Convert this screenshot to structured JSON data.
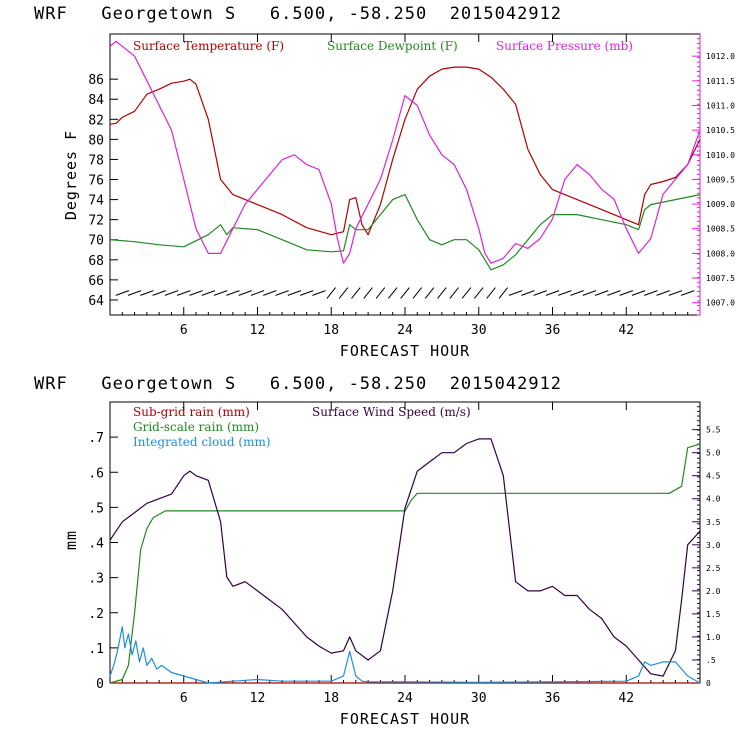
{
  "chart_data": [
    {
      "type": "line",
      "title": "WRF   Georgetown S   6.500, -58.250  2015042912",
      "xlabel": "FORECAST HOUR",
      "ylabel": "Degrees F",
      "xlim": [
        0,
        48
      ],
      "ylim": [
        62.5,
        90.5
      ],
      "x_ticks": [
        "6",
        "12",
        "18",
        "24",
        "30",
        "36",
        "42"
      ],
      "y_ticks": [
        "64",
        "66",
        "68",
        "70",
        "72",
        "74",
        "76",
        "78",
        "80",
        "82",
        "84",
        "86"
      ],
      "y2_label": "",
      "y2_ticks": [
        "1007.0",
        "1007.5",
        "1008.0",
        "1008.5",
        "1009.0",
        "1009.5",
        "1010.0",
        "1010.5",
        "1011.0",
        "1011.5",
        "1012.0"
      ],
      "y2lim": [
        1006.75,
        1012.45
      ],
      "grid": false,
      "legend_position": "top",
      "series": [
        {
          "name": "Surface Temperature (F)",
          "color": "#b00000",
          "axis": "left",
          "x": [
            0,
            0.5,
            1,
            2,
            3,
            4,
            5,
            6,
            6.5,
            7,
            8,
            9,
            10,
            12,
            14,
            16,
            18,
            19,
            19.5,
            20,
            20.5,
            21,
            22,
            23,
            24,
            25,
            26,
            27,
            28,
            29,
            30,
            31,
            32,
            33,
            34,
            35,
            36,
            37,
            38,
            40,
            42,
            43,
            43.5,
            44,
            45,
            46,
            47,
            48
          ],
          "values": [
            81.5,
            81.6,
            82.2,
            82.8,
            84.5,
            85.0,
            85.6,
            85.8,
            86.0,
            85.5,
            82.0,
            76.0,
            74.5,
            73.5,
            72.5,
            71.2,
            70.5,
            70.8,
            74.0,
            74.2,
            71.5,
            70.5,
            73.5,
            78.0,
            82.0,
            85.0,
            86.3,
            87.0,
            87.2,
            87.2,
            87.0,
            86.2,
            85.0,
            83.5,
            79.0,
            76.5,
            75.0,
            74.5,
            74.0,
            73.0,
            72.0,
            71.5,
            74.5,
            75.5,
            75.8,
            76.2,
            77.5,
            80.0
          ]
        },
        {
          "name": "Surface Dewpoint (F)",
          "color": "#228822",
          "axis": "left",
          "x": [
            0,
            2,
            4,
            6,
            8,
            9,
            9.5,
            10,
            12,
            14,
            16,
            18,
            19,
            19.5,
            20,
            21,
            22,
            23,
            24,
            25,
            26,
            27,
            28,
            29,
            30,
            31,
            32,
            33,
            34,
            35,
            36,
            38,
            40,
            42,
            43,
            43.5,
            44,
            46,
            48
          ],
          "values": [
            70.0,
            69.8,
            69.5,
            69.3,
            70.5,
            71.5,
            70.5,
            71.2,
            71.0,
            70.0,
            69.0,
            68.8,
            68.9,
            71.5,
            71.0,
            71.0,
            72.5,
            74.0,
            74.5,
            72.0,
            70.0,
            69.5,
            70.0,
            70.0,
            69.0,
            67.0,
            67.5,
            68.5,
            70.0,
            71.5,
            72.5,
            72.5,
            72.0,
            71.5,
            71.0,
            73.0,
            73.5,
            74.0,
            74.5
          ]
        },
        {
          "name": "Surface Pressure (mb)",
          "color": "#dd22dd",
          "axis": "right",
          "x": [
            0,
            0.5,
            1,
            2,
            3,
            4,
            5,
            6,
            7,
            8,
            9,
            10,
            11,
            12,
            13,
            14,
            15,
            16,
            17,
            18,
            18.5,
            19,
            19.5,
            20,
            21,
            22,
            23,
            24,
            25,
            26,
            27,
            28,
            29,
            30,
            30.5,
            31,
            32,
            33,
            34,
            35,
            36,
            37,
            38,
            39,
            40,
            41,
            42,
            43,
            44,
            45,
            46,
            47,
            48
          ],
          "values": [
            1012.2,
            1012.3,
            1012.2,
            1012.0,
            1011.5,
            1011.0,
            1010.5,
            1009.5,
            1008.5,
            1008.0,
            1008.0,
            1008.5,
            1009.0,
            1009.3,
            1009.6,
            1009.9,
            1010.0,
            1009.8,
            1009.7,
            1009.0,
            1008.3,
            1007.8,
            1008.0,
            1008.5,
            1009.0,
            1009.5,
            1010.3,
            1011.2,
            1011.0,
            1010.4,
            1010.0,
            1009.8,
            1009.3,
            1008.5,
            1008.0,
            1007.8,
            1007.9,
            1008.2,
            1008.1,
            1008.3,
            1008.7,
            1009.5,
            1009.8,
            1009.6,
            1009.3,
            1009.1,
            1008.5,
            1008.0,
            1008.3,
            1009.2,
            1009.5,
            1009.8,
            1010.5
          ]
        }
      ],
      "wind_barbs": "wind barbs along the bottom"
    },
    {
      "type": "line",
      "title": "WRF   Georgetown S   6.500, -58.250  2015042912",
      "xlabel": "FORECAST HOUR",
      "ylabel": "mm",
      "xlim": [
        0,
        48
      ],
      "ylim": [
        0,
        0.8
      ],
      "x_ticks": [
        "6",
        "12",
        "18",
        "24",
        "30",
        "36",
        "42"
      ],
      "y_ticks": [
        "0",
        ".1",
        ".2",
        ".3",
        ".4",
        ".5",
        ".6",
        ".7"
      ],
      "y2_label": "",
      "y2_ticks": [
        "0",
        ".5",
        "1.0",
        "1.5",
        "2.0",
        "2.5",
        "3.0",
        "3.5",
        "4.0",
        "4.5",
        "5.0",
        "5.5"
      ],
      "y2lim": [
        0,
        6.1
      ],
      "grid": false,
      "legend_position": "top-left",
      "series": [
        {
          "name": "Sub-grid rain (mm)",
          "color": "#b00000",
          "axis": "left",
          "x": [
            0,
            48
          ],
          "values": [
            0,
            0
          ]
        },
        {
          "name": "Grid-scale rain (mm)",
          "color": "#228822",
          "axis": "left",
          "x": [
            0,
            1,
            1.5,
            2,
            2.5,
            3,
            3.5,
            4,
            4.5,
            5,
            5.5,
            24,
            24.5,
            25,
            45.5,
            46,
            46.5,
            47,
            48
          ],
          "values": [
            0,
            0.01,
            0.05,
            0.2,
            0.38,
            0.44,
            0.47,
            0.48,
            0.49,
            0.49,
            0.49,
            0.49,
            0.52,
            0.54,
            0.54,
            0.55,
            0.56,
            0.67,
            0.68
          ]
        },
        {
          "name": "Surface Wind Speed (m/s)",
          "color": "#330044",
          "axis": "right",
          "x": [
            0,
            1,
            2,
            3,
            4,
            5,
            6,
            6.5,
            7,
            8,
            9,
            9.5,
            10,
            11,
            12,
            13,
            14,
            15,
            16,
            17,
            18,
            19,
            19.5,
            20,
            21,
            22,
            23,
            24,
            25,
            26,
            27,
            28,
            29,
            30,
            31,
            32,
            33,
            34,
            35,
            36,
            37,
            38,
            39,
            40,
            41,
            42,
            43,
            44,
            45,
            46,
            46.5,
            47,
            48
          ],
          "values": [
            3.1,
            3.5,
            3.7,
            3.9,
            4.0,
            4.1,
            4.5,
            4.6,
            4.5,
            4.4,
            3.5,
            2.3,
            2.1,
            2.2,
            2.0,
            1.8,
            1.6,
            1.3,
            1.0,
            0.8,
            0.65,
            0.7,
            1.0,
            0.7,
            0.5,
            0.7,
            2.0,
            3.8,
            4.6,
            4.8,
            5.0,
            5.0,
            5.2,
            5.3,
            5.3,
            4.5,
            2.2,
            2.0,
            2.0,
            2.1,
            1.9,
            1.9,
            1.6,
            1.4,
            1.0,
            0.8,
            0.5,
            0.2,
            0.15,
            0.7,
            1.8,
            3.0,
            3.3
          ]
        },
        {
          "name": "Integrated cloud (mm)",
          "color": "#1f8fd6",
          "axis": "left",
          "x": [
            0,
            0.3,
            0.6,
            1.0,
            1.2,
            1.5,
            1.8,
            2.1,
            2.4,
            2.7,
            3.0,
            3.4,
            3.8,
            4.2,
            5,
            6,
            7,
            8,
            10,
            12,
            14,
            16,
            18,
            19,
            19.5,
            20,
            20.5,
            21,
            24,
            30,
            36,
            42,
            43,
            43.5,
            44,
            45,
            46,
            47,
            48
          ],
          "values": [
            0.02,
            0.05,
            0.09,
            0.16,
            0.1,
            0.14,
            0.08,
            0.12,
            0.06,
            0.1,
            0.05,
            0.07,
            0.04,
            0.05,
            0.03,
            0.02,
            0.01,
            0.0,
            0.005,
            0.01,
            0.005,
            0.005,
            0.005,
            0.02,
            0.09,
            0.02,
            0.005,
            0.003,
            0.003,
            0.002,
            0.003,
            0.005,
            0.02,
            0.06,
            0.05,
            0.06,
            0.06,
            0.02,
            0.0
          ]
        }
      ]
    }
  ]
}
